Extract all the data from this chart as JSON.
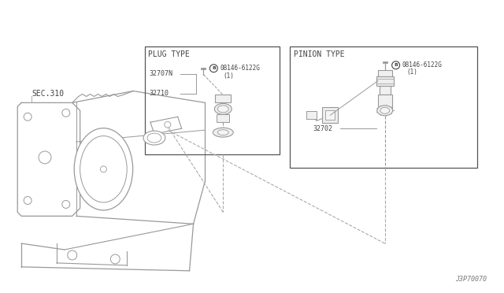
{
  "bg_color": "#ffffff",
  "line_color": "#aaaaaa",
  "body_color": "#999999",
  "text_color": "#444444",
  "diagram_code": "J3P70070",
  "plug_type_label": "PLUG TYPE",
  "pinion_type_label": "PINION TYPE",
  "sec_label": "SEC.310",
  "plug_part1": "32707N",
  "plug_part2": "32710",
  "pinion_part1": "32702",
  "bolt_label": "08146-6122G",
  "bolt_qty": "(1)"
}
